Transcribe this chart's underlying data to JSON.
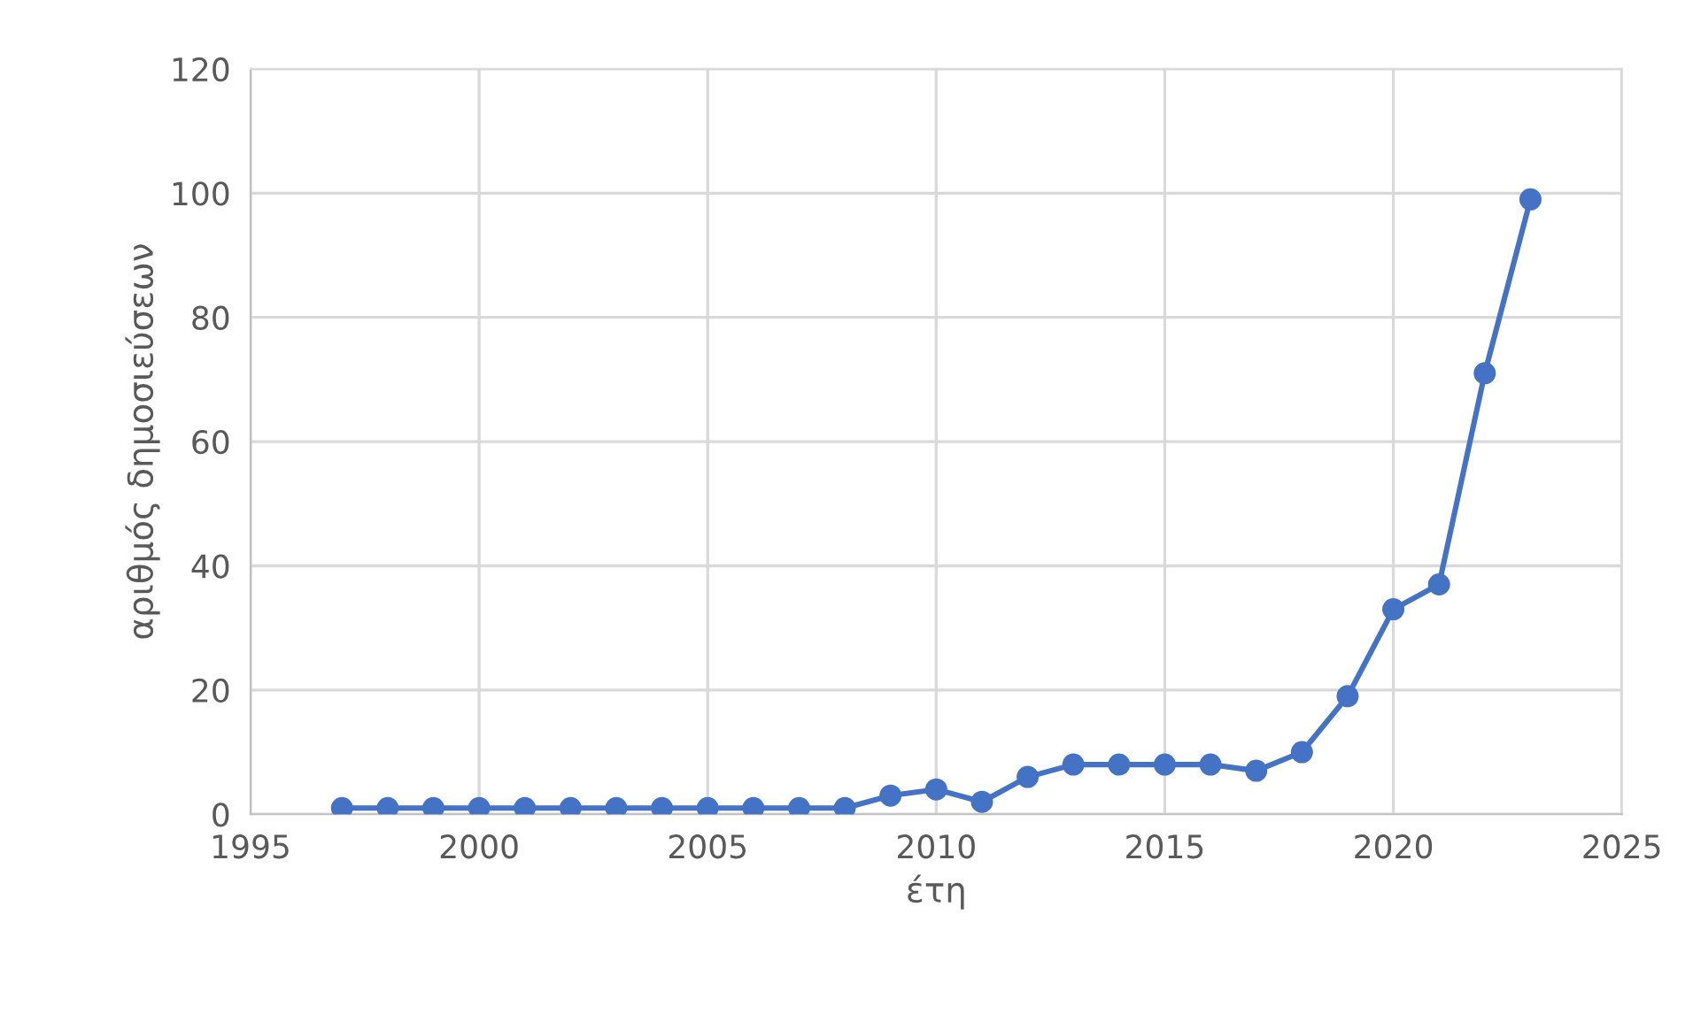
{
  "chart_data": {
    "type": "line",
    "xlabel": "έτη",
    "ylabel": "αριθμός δημοσιεύσεων",
    "x": [
      1997,
      1998,
      1999,
      2000,
      2001,
      2002,
      2003,
      2004,
      2005,
      2006,
      2007,
      2008,
      2009,
      2010,
      2011,
      2012,
      2013,
      2014,
      2015,
      2016,
      2017,
      2018,
      2019,
      2020,
      2021,
      2022,
      2023
    ],
    "series": [
      {
        "color": "#4472c4",
        "values": [
          1,
          1,
          1,
          1,
          1,
          1,
          1,
          1,
          1,
          1,
          1,
          1,
          3,
          4,
          2,
          6,
          8,
          8,
          8,
          8,
          7,
          10,
          19,
          33,
          37,
          71,
          99
        ]
      }
    ],
    "xlim": [
      1995,
      2025
    ],
    "xticks": [
      1995,
      2000,
      2005,
      2010,
      2015,
      2020,
      2025
    ],
    "ylim": [
      0,
      120
    ],
    "yticks": [
      0,
      20,
      40,
      60,
      80,
      100,
      120
    ],
    "grid": true,
    "marker": "circle",
    "line_style": "solid"
  }
}
